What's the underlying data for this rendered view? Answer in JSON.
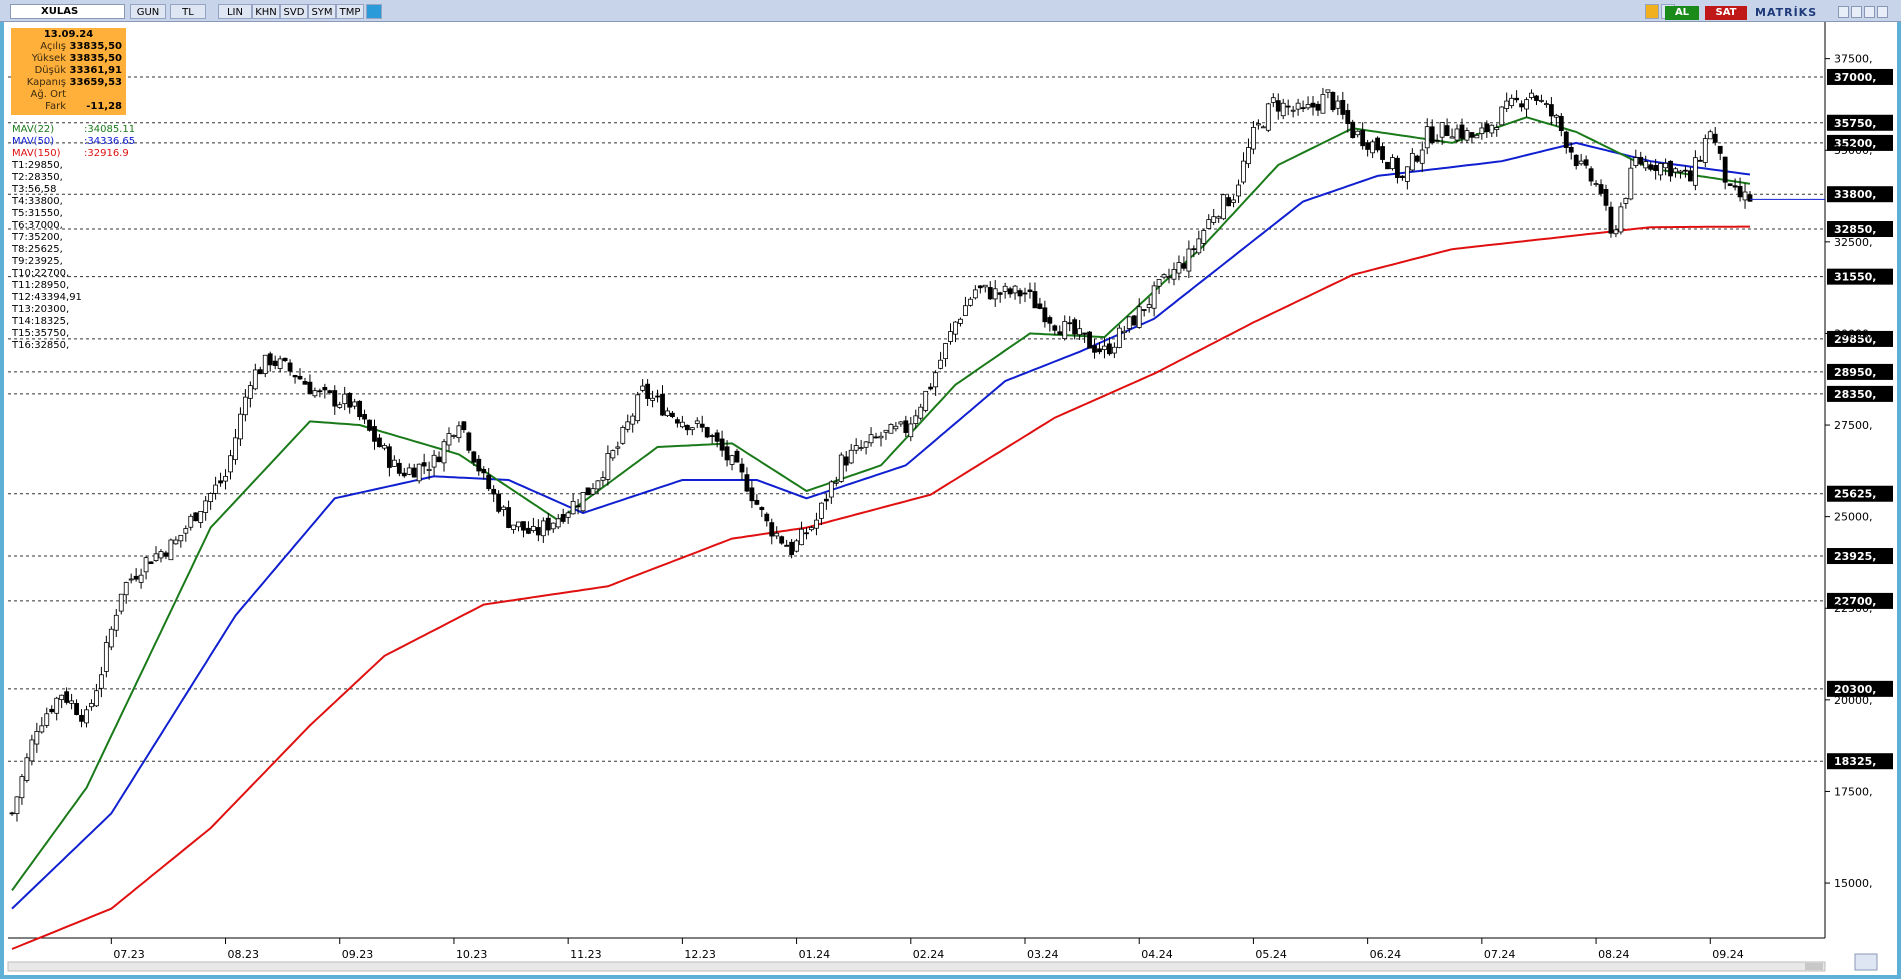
{
  "toolbar": {
    "symbol": "XULAS",
    "buttons": [
      "GUN",
      "TL",
      "LIN",
      "KHN",
      "SVD",
      "SYM",
      "TMP"
    ],
    "buy_label": "AL",
    "sell_label": "SAT",
    "brand": "MATRİKS"
  },
  "info": {
    "date": "13.09.24",
    "rows": [
      {
        "label": "Açılış",
        "value": "33835,50"
      },
      {
        "label": "Yüksek",
        "value": "33835,50"
      },
      {
        "label": "Düşük",
        "value": "33361,91"
      },
      {
        "label": "Kapanış",
        "value": "33659,53"
      },
      {
        "label": "Ağ. Ort",
        "value": ""
      },
      {
        "label": "Fark",
        "value": "-11,28"
      }
    ]
  },
  "legend": [
    {
      "label": "MAV(22)",
      "value": ":34085.11",
      "color": "#1a7a1a"
    },
    {
      "label": "MAV(50)",
      "value": ":34336.65",
      "color": "#1020d0"
    },
    {
      "label": "MAV(150)",
      "value": ":32916.9",
      "color": "#e01010"
    }
  ],
  "trend_levels": [
    "T1:29850,",
    "T2:28350,",
    "T3:56,58",
    "T4:33800,",
    "T5:31550,",
    "T6:37000,",
    "T7:35200,",
    "T8:25625,",
    "T9:23925,",
    "T10:22700,",
    "T11:28950,",
    "T12:43394,91",
    "T13:20300,",
    "T14:18325,",
    "T15:35750,",
    "T16:32850,"
  ],
  "chart_data": {
    "type": "candlestick",
    "title": "XULAS",
    "ylim": [
      13500,
      38500
    ],
    "y_ticks": [
      15000,
      17500,
      20000,
      22500,
      25000,
      27500,
      30000,
      32500,
      35000,
      37500
    ],
    "y_tick_labels": [
      "15000,",
      "17500,",
      "20000,",
      "22500,",
      "25000,",
      "27500,",
      "30000,",
      "32500,",
      "35000,",
      "37500,"
    ],
    "x_labels": [
      "07.23",
      "08.23",
      "09.23",
      "10.23",
      "11.23",
      "12.23",
      "01.24",
      "02.24",
      "03.24",
      "04.24",
      "05.24",
      "06.24",
      "07.24",
      "08.24",
      "09.24"
    ],
    "horizontal_levels": [
      {
        "value": 37000,
        "label": "37000,"
      },
      {
        "value": 35750,
        "label": "35750,"
      },
      {
        "value": 35200,
        "label": "35200,"
      },
      {
        "value": 33800,
        "label": "33800,"
      },
      {
        "value": 32850,
        "label": "32850,"
      },
      {
        "value": 31550,
        "label": "31550,"
      },
      {
        "value": 29850,
        "label": "29850,"
      },
      {
        "value": 28950,
        "label": "28950,"
      },
      {
        "value": 28350,
        "label": "28350,"
      },
      {
        "value": 25625,
        "label": "25625,"
      },
      {
        "value": 23925,
        "label": "23925,"
      },
      {
        "value": 22700,
        "label": "22700,"
      },
      {
        "value": 20300,
        "label": "20300,"
      },
      {
        "value": 18325,
        "label": "18325,"
      }
    ],
    "close_anchors": [
      [
        0,
        16900
      ],
      [
        5,
        19300
      ],
      [
        10,
        20200
      ],
      [
        15,
        19500
      ],
      [
        18,
        20800
      ],
      [
        22,
        23000
      ],
      [
        27,
        23800
      ],
      [
        33,
        24300
      ],
      [
        38,
        25300
      ],
      [
        43,
        26100
      ],
      [
        48,
        28800
      ],
      [
        52,
        29300
      ],
      [
        57,
        28900
      ],
      [
        62,
        28300
      ],
      [
        68,
        28100
      ],
      [
        72,
        27300
      ],
      [
        78,
        26200
      ],
      [
        85,
        26500
      ],
      [
        90,
        27700
      ],
      [
        95,
        26000
      ],
      [
        100,
        24900
      ],
      [
        105,
        24500
      ],
      [
        110,
        25000
      ],
      [
        116,
        25700
      ],
      [
        122,
        26900
      ],
      [
        127,
        28400
      ],
      [
        133,
        27800
      ],
      [
        140,
        27300
      ],
      [
        148,
        25900
      ],
      [
        152,
        24800
      ],
      [
        157,
        24100
      ],
      [
        162,
        24900
      ],
      [
        167,
        26500
      ],
      [
        175,
        27200
      ],
      [
        180,
        27400
      ],
      [
        185,
        28600
      ],
      [
        190,
        30300
      ],
      [
        194,
        31200
      ],
      [
        198,
        31100
      ],
      [
        204,
        31100
      ],
      [
        210,
        30300
      ],
      [
        216,
        29800
      ],
      [
        220,
        29500
      ],
      [
        226,
        30400
      ],
      [
        232,
        31400
      ],
      [
        237,
        32100
      ],
      [
        242,
        33300
      ],
      [
        246,
        33800
      ],
      [
        250,
        35400
      ],
      [
        254,
        36300
      ],
      [
        260,
        36000
      ],
      [
        265,
        36500
      ],
      [
        270,
        35500
      ],
      [
        275,
        35100
      ],
      [
        280,
        34200
      ],
      [
        285,
        35400
      ],
      [
        290,
        35600
      ],
      [
        295,
        35300
      ],
      [
        300,
        36000
      ],
      [
        306,
        36600
      ],
      [
        311,
        35800
      ],
      [
        316,
        34500
      ],
      [
        320,
        33900
      ],
      [
        322,
        32600
      ],
      [
        327,
        34700
      ],
      [
        333,
        34600
      ],
      [
        338,
        34200
      ],
      [
        342,
        35600
      ],
      [
        346,
        33800
      ],
      [
        350,
        33660
      ]
    ],
    "mav22_anchors": [
      [
        0,
        14800
      ],
      [
        15,
        17600
      ],
      [
        40,
        24700
      ],
      [
        60,
        27600
      ],
      [
        70,
        27500
      ],
      [
        90,
        26700
      ],
      [
        110,
        24900
      ],
      [
        130,
        26900
      ],
      [
        145,
        27000
      ],
      [
        160,
        25700
      ],
      [
        175,
        26400
      ],
      [
        190,
        28600
      ],
      [
        205,
        30000
      ],
      [
        220,
        29900
      ],
      [
        240,
        32400
      ],
      [
        255,
        34600
      ],
      [
        270,
        35600
      ],
      [
        290,
        35200
      ],
      [
        305,
        35900
      ],
      [
        315,
        35500
      ],
      [
        330,
        34500
      ],
      [
        350,
        34085
      ]
    ],
    "mav50_anchors": [
      [
        0,
        14300
      ],
      [
        20,
        16900
      ],
      [
        45,
        22300
      ],
      [
        65,
        25500
      ],
      [
        85,
        26100
      ],
      [
        100,
        26000
      ],
      [
        115,
        25100
      ],
      [
        135,
        26000
      ],
      [
        150,
        26000
      ],
      [
        160,
        25500
      ],
      [
        180,
        26400
      ],
      [
        200,
        28700
      ],
      [
        215,
        29500
      ],
      [
        230,
        30400
      ],
      [
        245,
        32000
      ],
      [
        260,
        33600
      ],
      [
        275,
        34300
      ],
      [
        300,
        34700
      ],
      [
        315,
        35200
      ],
      [
        330,
        34700
      ],
      [
        350,
        34337
      ]
    ],
    "mav150_anchors": [
      [
        0,
        13200
      ],
      [
        20,
        14300
      ],
      [
        40,
        16500
      ],
      [
        60,
        19300
      ],
      [
        75,
        21200
      ],
      [
        95,
        22600
      ],
      [
        120,
        23100
      ],
      [
        145,
        24400
      ],
      [
        160,
        24700
      ],
      [
        185,
        25600
      ],
      [
        210,
        27700
      ],
      [
        230,
        28900
      ],
      [
        250,
        30300
      ],
      [
        270,
        31600
      ],
      [
        290,
        32300
      ],
      [
        310,
        32600
      ],
      [
        330,
        32900
      ],
      [
        350,
        32917
      ]
    ],
    "series": [
      {
        "name": "MAV(22)",
        "color": "#1a7a1a"
      },
      {
        "name": "MAV(50)",
        "color": "#1020d0"
      },
      {
        "name": "MAV(150)",
        "color": "#e01010"
      }
    ],
    "last_close": 33659.53
  }
}
